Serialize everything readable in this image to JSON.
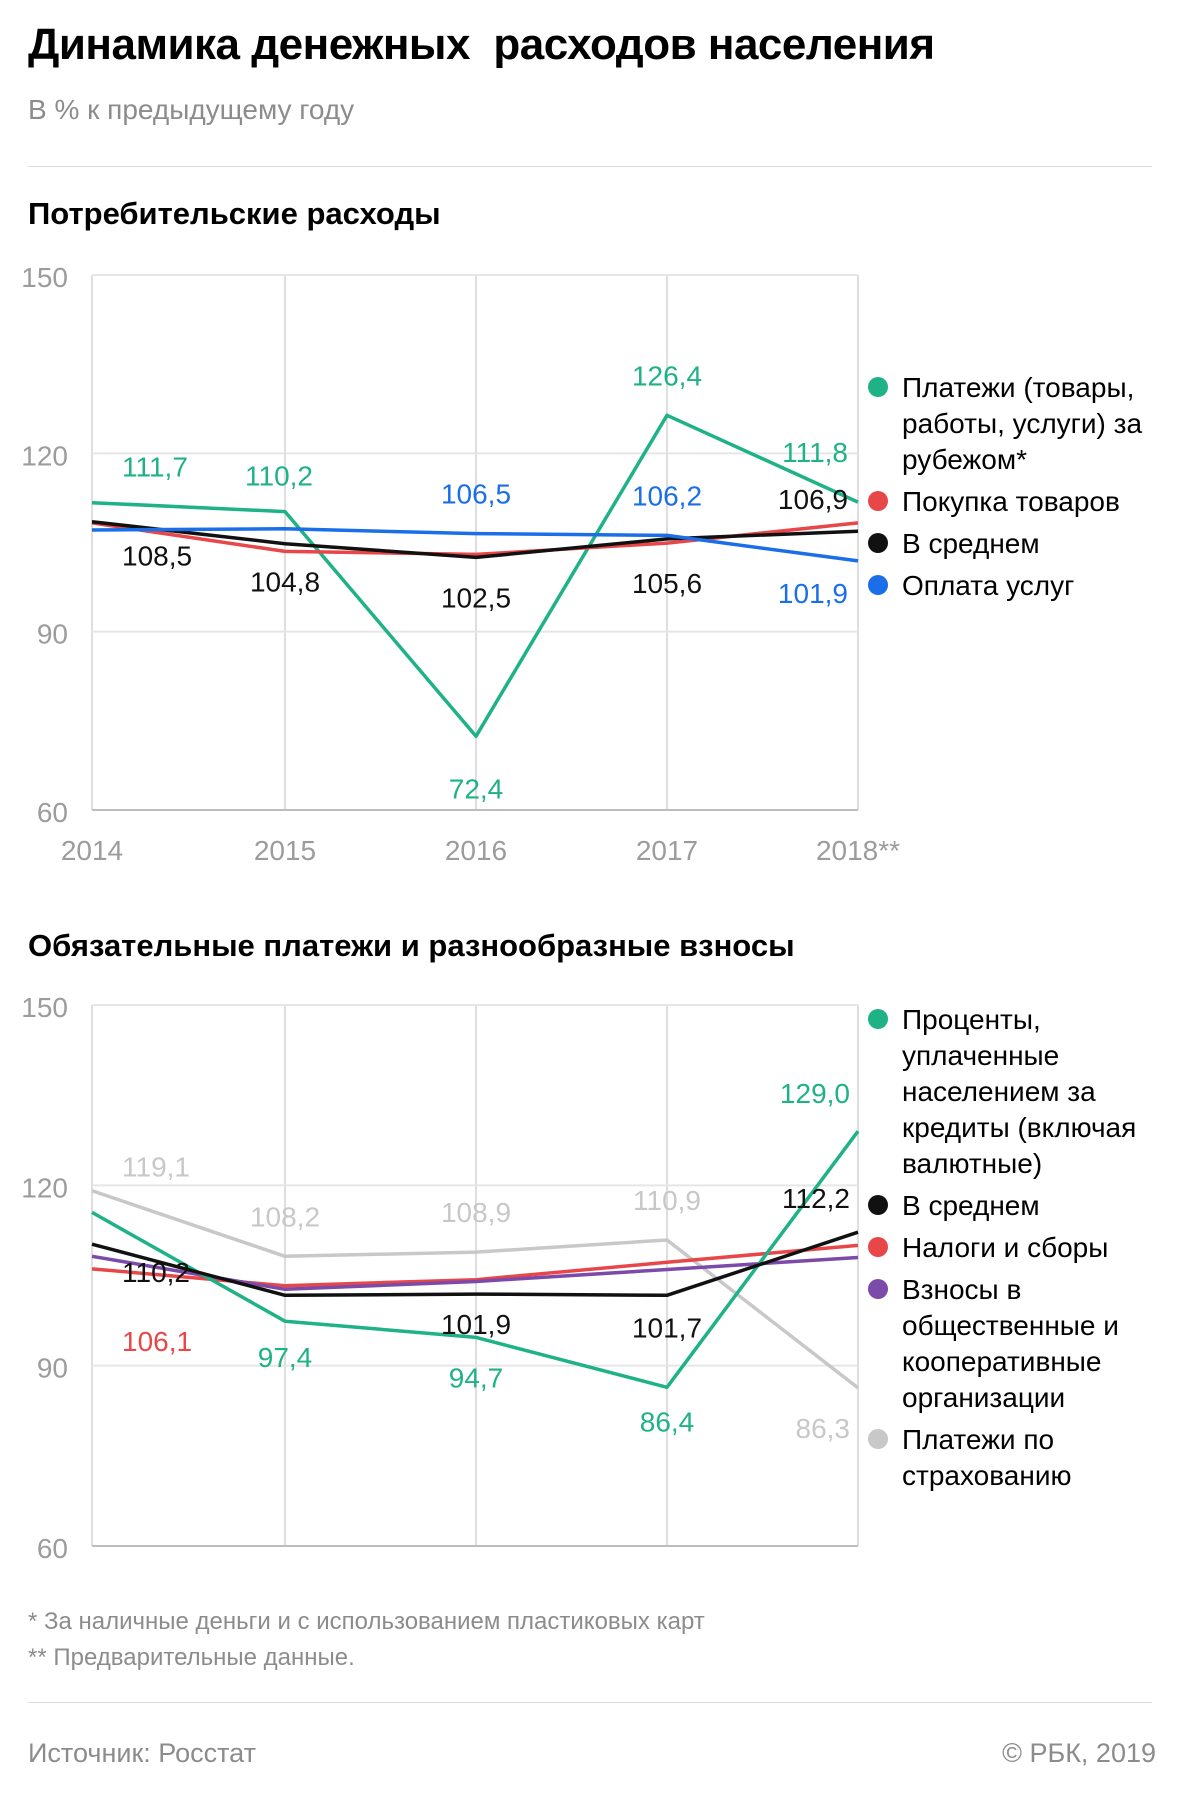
{
  "header": {
    "title": "Динамика денежных  расходов населения",
    "subtitle": "В % к предыдущему году"
  },
  "colors": {
    "green": "#1fb287",
    "red": "#e8474a",
    "black": "#111111",
    "blue": "#1a6fe8",
    "purple": "#7c4aa8",
    "gray": "#c8c8c8"
  },
  "chart_data": [
    {
      "type": "line",
      "title": "Потребительские расходы",
      "categories": [
        "2014",
        "2015",
        "2016",
        "2017",
        "2018**"
      ],
      "ylim": [
        60,
        150
      ],
      "yticks": [
        "150",
        "120",
        "90",
        "60"
      ],
      "series": [
        {
          "name": "Платежи (товары, работы, услуги) за рубежом*",
          "color": "green",
          "values": [
            111.7,
            110.2,
            72.4,
            126.4,
            111.8
          ],
          "labels": [
            "111,7",
            "110,2",
            "72,4",
            "126,4",
            "111,8"
          ]
        },
        {
          "name": "Покупка товаров",
          "color": "red",
          "values": [
            108.3,
            103.5,
            103.0,
            104.9,
            108.3
          ],
          "labels": []
        },
        {
          "name": "В среднем",
          "color": "black",
          "values": [
            108.5,
            104.8,
            102.5,
            105.6,
            106.9
          ],
          "labels": [
            "108,5",
            "104,8",
            "102,5",
            "105,6",
            "106,9"
          ]
        },
        {
          "name": "Оплата услуг",
          "color": "blue",
          "values": [
            107.1,
            107.3,
            106.5,
            106.2,
            101.9
          ],
          "labels": [
            "",
            "",
            "106,5",
            "106,2",
            "101,9"
          ]
        }
      ],
      "legend": [
        {
          "label": "Платежи (товары, работы, услуги) за рубежом*",
          "color": "green"
        },
        {
          "label": "Покупка товаров",
          "color": "red"
        },
        {
          "label": "В среднем",
          "color": "black"
        },
        {
          "label": "Оплата услуг",
          "color": "blue"
        }
      ]
    },
    {
      "type": "line",
      "title": "Обязательные платежи и разнообразные взносы",
      "categories": [
        "2014",
        "2015",
        "2016",
        "2017",
        "2018**"
      ],
      "ylim": [
        60,
        150
      ],
      "yticks": [
        "150",
        "120",
        "90",
        "60"
      ],
      "series": [
        {
          "name": "Платежи по страхованию",
          "color": "gray",
          "values": [
            119.1,
            108.2,
            108.9,
            110.9,
            86.3
          ],
          "labels": [
            "119,1",
            "108,2",
            "108,9",
            "110,9",
            "86,3"
          ]
        },
        {
          "name": "Налоги и сборы",
          "color": "red",
          "values": [
            106.1,
            103.3,
            104.3,
            107.2,
            110.0
          ],
          "labels": [
            "106,1",
            "",
            "",
            "",
            ""
          ]
        },
        {
          "name": "Взносы в общественные и кооперативные организации",
          "color": "purple",
          "values": [
            108.2,
            102.7,
            104.0,
            106.0,
            108.0
          ],
          "labels": []
        },
        {
          "name": "Проценты, уплаченные населением за кредиты (включая валютные)",
          "color": "green",
          "values": [
            115.5,
            97.4,
            94.7,
            86.4,
            129.0
          ],
          "labels": [
            "",
            "97,4",
            "94,7",
            "86,4",
            "129,0"
          ]
        },
        {
          "name": "В среднем",
          "color": "black",
          "values": [
            110.2,
            101.7,
            101.9,
            101.7,
            112.2
          ],
          "labels": [
            "110,2",
            "",
            "101,9",
            "101,7",
            "112,2"
          ]
        }
      ],
      "legend": [
        {
          "label": "Проценты, уплаченные населением за кредиты (включая валютные)",
          "color": "green"
        },
        {
          "label": "В среднем",
          "color": "black"
        },
        {
          "label": "Налоги и сборы",
          "color": "red"
        },
        {
          "label": "Взносы в общественные и кооперативные организации",
          "color": "purple"
        },
        {
          "label": "Платежи по страхованию",
          "color": "gray"
        }
      ]
    }
  ],
  "footnotes": {
    "note1": "* За наличные деньги и с использованием пластиковых карт",
    "note2": "** Предварительные данные."
  },
  "footer": {
    "source": "Источник: Росстат",
    "copyright": "© РБК, 2019"
  }
}
